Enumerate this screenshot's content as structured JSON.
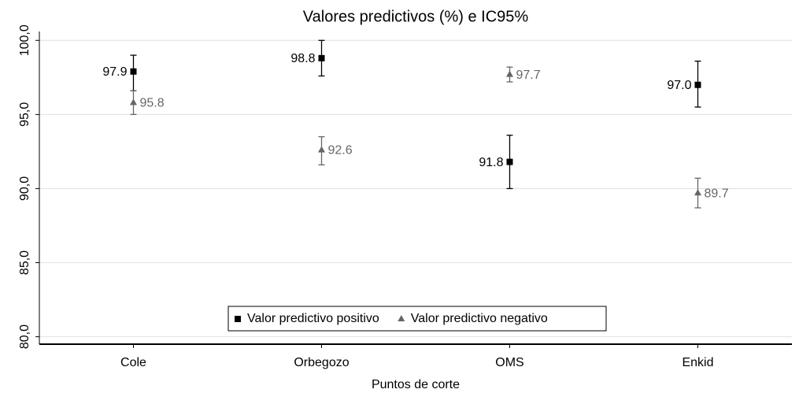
{
  "chart_data": {
    "type": "errorbar",
    "title": "Valores predictivos (%) e IC95%",
    "x_label": "Puntos de corte",
    "categories": [
      "Cole",
      "Orbegozo",
      "OMS",
      "Enkid"
    ],
    "series": [
      {
        "name": "Valor predictivo positivo",
        "color": "#000000",
        "marker": "square",
        "values": [
          97.9,
          98.8,
          91.8,
          97.0
        ],
        "value_labels": [
          "97.9",
          "98.8",
          "91.8",
          "97.0"
        ],
        "low": [
          96.6,
          97.6,
          90.0,
          95.5
        ],
        "high": [
          99.0,
          100.0,
          93.6,
          98.6
        ]
      },
      {
        "name": "Valor predictivo negativo",
        "color": "#666666",
        "marker": "triangle",
        "values": [
          95.8,
          92.6,
          97.7,
          89.7
        ],
        "value_labels": [
          "95.8",
          "92.6",
          "97.7",
          "89.7"
        ],
        "low": [
          95.0,
          91.6,
          97.2,
          88.7
        ],
        "high": [
          96.6,
          93.5,
          98.2,
          90.7
        ]
      }
    ],
    "ylim": [
      79.5,
      100.6
    ],
    "yticks": [
      {
        "value": 80,
        "label": "80,0"
      },
      {
        "value": 85,
        "label": "85,0"
      },
      {
        "value": 90,
        "label": "90,0"
      },
      {
        "value": 95,
        "label": "95,0"
      },
      {
        "value": 100,
        "label": "100,0"
      }
    ],
    "grid": true,
    "legend": "bottom"
  }
}
